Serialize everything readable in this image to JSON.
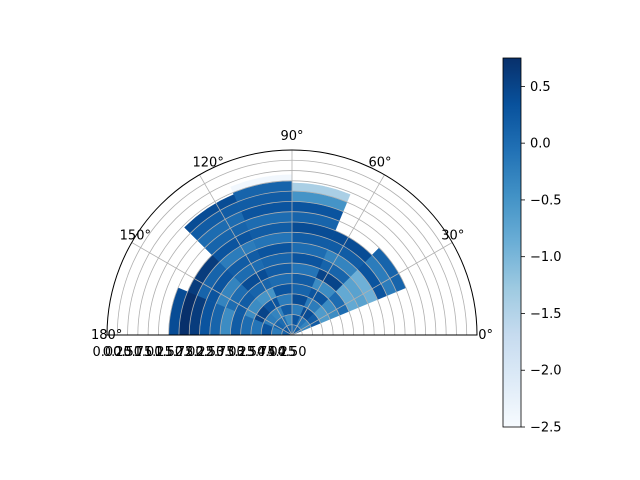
{
  "chart_data": {
    "type": "heatmap",
    "projection": "polar",
    "theta_range_deg": [
      0,
      180
    ],
    "r_range": [
      0,
      4.5
    ],
    "theta_tick_labels": [
      "0°",
      "30°",
      "60°",
      "90°",
      "120°",
      "150°",
      "180°"
    ],
    "theta_ticks_deg": [
      0,
      30,
      60,
      90,
      120,
      150,
      180
    ],
    "r_ticks": [
      4.5,
      4.25,
      4.0,
      3.75,
      3.5,
      3.25,
      3.0,
      2.75,
      2.5,
      2.25,
      2.0,
      1.75,
      1.5,
      1.25,
      1.0,
      0.75,
      0.5,
      0.25,
      0.0
    ],
    "r_tick_labels": [
      "4.50",
      "4.25",
      "4.00",
      "3.75",
      "3.50",
      "3.25",
      "3.00",
      "2.75",
      "2.50",
      "2.25",
      "2.00",
      "1.75",
      "1.50",
      "1.25",
      "1.00",
      "0.75",
      "0.50",
      "0.25",
      "0.00"
    ],
    "theta_bin_edges_deg": [
      0,
      22.5,
      45,
      67.5,
      90,
      112.5,
      135,
      157.5,
      180
    ],
    "r_bin_edges": [
      0,
      0.25,
      0.5,
      0.75,
      1.0,
      1.25,
      1.5,
      1.75,
      2.0,
      2.25,
      2.5,
      2.75,
      3.0,
      3.25,
      3.5,
      3.75,
      4.0
    ],
    "sector_outer_r": [
      0,
      3.0,
      2.8,
      3.7,
      3.9,
      3.7,
      2.8,
      3.0
    ],
    "values": [
      [],
      [
        0.1,
        -0.3,
        0.2,
        -0.6,
        -0.4,
        0.0,
        -0.8,
        -0.7,
        -0.9,
        0.3,
        -0.2,
        0.1
      ],
      [
        0.2,
        -0.1,
        0.4,
        -0.2,
        0.3,
        -0.4,
        0.5,
        0.1,
        -0.3,
        0.2,
        0.4
      ],
      [
        0.0,
        0.3,
        -0.2,
        0.4,
        0.1,
        0.2,
        -0.1,
        0.3,
        0.0,
        0.2,
        0.4,
        0.1,
        0.3,
        -0.5,
        -1.4
      ],
      [
        0.1,
        -0.4,
        0.2,
        -0.2,
        0.3,
        0.0,
        0.2,
        0.1,
        0.3,
        -0.1,
        0.2,
        0.0,
        0.3,
        0.2,
        0.1,
        -2.4
      ],
      [
        0.2,
        0.0,
        -0.3,
        0.3,
        -0.5,
        0.1,
        0.4,
        0.0,
        0.2,
        -0.2,
        0.3,
        0.1,
        0.0,
        0.2,
        0.4
      ],
      [
        0.3,
        0.1,
        -0.2,
        0.5,
        -0.4,
        0.2,
        0.0,
        -0.3,
        0.3,
        0.1,
        0.6
      ],
      [
        0.1,
        -0.2,
        0.3,
        -0.1,
        0.0,
        0.2,
        -0.4,
        0.1,
        0.3,
        0.6,
        0.8,
        0.4
      ]
    ],
    "colormap": "Blues",
    "colorbar": {
      "vmin": -2.5,
      "vmax": 0.75,
      "ticks": [
        0.5,
        0.0,
        -0.5,
        -1.0,
        -1.5,
        -2.0,
        -2.5
      ],
      "tick_labels": [
        "0.5",
        "0.0",
        "−0.5",
        "−1.0",
        "−1.5",
        "−2.0",
        "−2.5"
      ]
    },
    "grid": true,
    "title": "",
    "xlabel": "",
    "ylabel": ""
  }
}
